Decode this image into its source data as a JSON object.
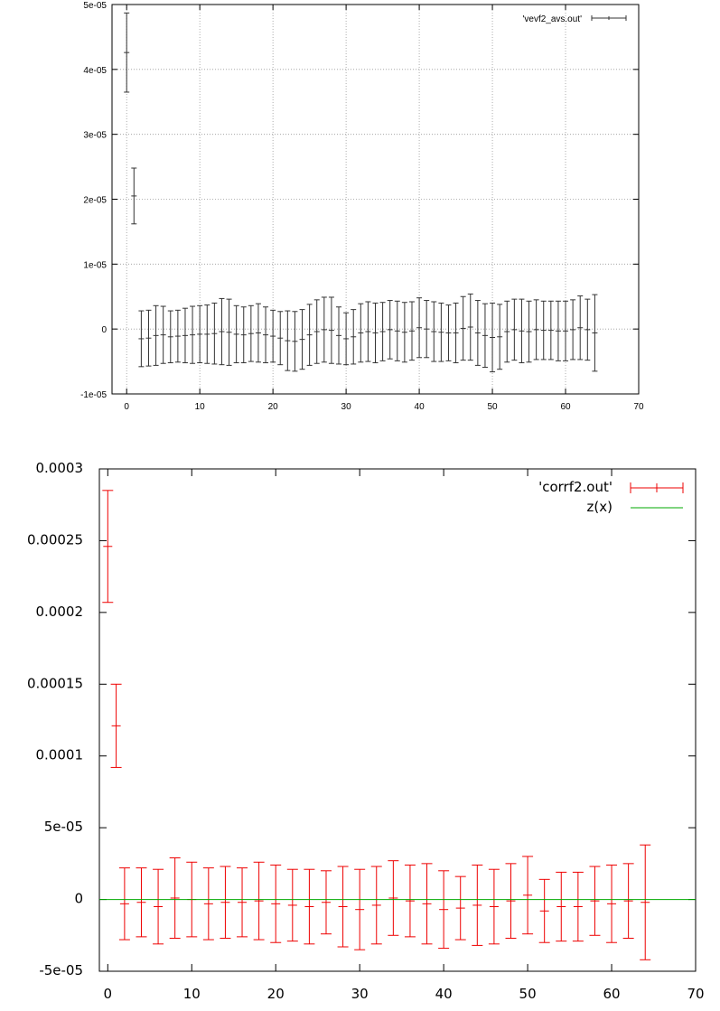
{
  "chart_data": [
    {
      "type": "scatter",
      "style": "errorbars",
      "title": "",
      "xlabel": "",
      "ylabel": "",
      "xlim": [
        -2,
        70
      ],
      "ylim": [
        -1e-05,
        5e-05
      ],
      "grid": true,
      "legend_position": "top-right",
      "x_ticks": [
        "0",
        "10",
        "20",
        "30",
        "40",
        "50",
        "60",
        "70"
      ],
      "y_ticks": [
        "-1e-05",
        "0",
        "1e-05",
        "2e-05",
        "3e-05",
        "4e-05",
        "5e-05"
      ],
      "series": [
        {
          "name": "'vevf2_avs.out'",
          "color": "#333333",
          "x": [
            0,
            1,
            2,
            3,
            4,
            5,
            6,
            7,
            8,
            9,
            10,
            11,
            12,
            13,
            14,
            15,
            16,
            17,
            18,
            19,
            20,
            21,
            22,
            23,
            24,
            25,
            26,
            27,
            28,
            29,
            30,
            31,
            32,
            33,
            34,
            35,
            36,
            37,
            38,
            39,
            40,
            41,
            42,
            43,
            44,
            45,
            46,
            47,
            48,
            49,
            50,
            51,
            52,
            53,
            54,
            55,
            56,
            57,
            58,
            59,
            60,
            61,
            62,
            63,
            64
          ],
          "y": [
            4.26e-05,
            2.05e-05,
            -1.5e-06,
            -1.4e-06,
            -1e-06,
            -9e-07,
            -1.2e-06,
            -1.1e-06,
            -1e-06,
            -9e-07,
            -8e-07,
            -8e-07,
            -7e-07,
            -4e-07,
            -5e-07,
            -8e-07,
            -9e-07,
            -7e-07,
            -6e-07,
            -9e-07,
            -1.1e-06,
            -1.4e-06,
            -1.8e-06,
            -1.9e-06,
            -1.6e-06,
            -9e-07,
            -4e-07,
            -1e-07,
            -2e-07,
            -1e-06,
            -1.5e-06,
            -1.2e-06,
            -6e-07,
            -4e-07,
            -6e-07,
            -4e-07,
            -1e-07,
            -3e-07,
            -5e-07,
            -3e-07,
            2e-07,
            0,
            -4e-07,
            -5e-07,
            -6e-07,
            -6e-07,
            1e-07,
            3e-07,
            -6e-07,
            -1e-06,
            -1.3e-06,
            -1.2e-06,
            -4e-07,
            -1e-07,
            -3e-07,
            -4e-07,
            -1e-07,
            -2e-07,
            -2e-07,
            -3e-07,
            -3e-07,
            -1e-07,
            2e-07,
            -1e-07,
            -6e-07
          ],
          "err": [
            6.1e-06,
            4.3e-06,
            4.3e-06,
            4.3e-06,
            4.6e-06,
            4.4e-06,
            4e-06,
            4e-06,
            4.2e-06,
            4.4e-06,
            4.4e-06,
            4.5e-06,
            4.7e-06,
            5.1e-06,
            5.1e-06,
            4.4e-06,
            4.3e-06,
            4.3e-06,
            4.5e-06,
            4.3e-06,
            4e-06,
            4.1e-06,
            4.6e-06,
            4.6e-06,
            4.6e-06,
            4.7e-06,
            4.9e-06,
            5e-06,
            5.1e-06,
            4.4e-06,
            4e-06,
            4.2e-06,
            4.5e-06,
            4.6e-06,
            4.6e-06,
            4.5e-06,
            4.5e-06,
            4.6e-06,
            4.6e-06,
            4.5e-06,
            4.6e-06,
            4.4e-06,
            4.6e-06,
            4.5e-06,
            4.3e-06,
            4.6e-06,
            4.9e-06,
            5.1e-06,
            5e-06,
            4.9e-06,
            5.3e-06,
            5e-06,
            4.7e-06,
            4.7e-06,
            4.9e-06,
            4.7e-06,
            4.6e-06,
            4.5e-06,
            4.5e-06,
            4.6e-06,
            4.6e-06,
            4.6e-06,
            4.9e-06,
            4.7e-06,
            5.9e-06
          ]
        }
      ]
    },
    {
      "type": "scatter",
      "style": "errorbars",
      "title": "",
      "xlabel": "",
      "ylabel": "",
      "xlim": [
        -1,
        70
      ],
      "ylim": [
        -5e-05,
        0.0003
      ],
      "grid": false,
      "legend_position": "top-right",
      "x_ticks": [
        "0",
        "10",
        "20",
        "30",
        "40",
        "50",
        "60",
        "70"
      ],
      "y_ticks": [
        "-5e-05",
        "0",
        "5e-05",
        "0.0001",
        "0.00015",
        "0.0002",
        "0.00025",
        "0.0003"
      ],
      "series": [
        {
          "name": "'corrf2.out'",
          "color": "#ee0000",
          "x": [
            0,
            1,
            2,
            4,
            6,
            8,
            10,
            12,
            14,
            16,
            18,
            20,
            22,
            24,
            26,
            28,
            30,
            32,
            34,
            36,
            38,
            40,
            42,
            44,
            46,
            48,
            50,
            52,
            54,
            56,
            58,
            60,
            62,
            64
          ],
          "y": [
            0.000246,
            0.000121,
            -3e-06,
            -2e-06,
            -5e-06,
            1e-06,
            0,
            -3e-06,
            -2e-06,
            -2e-06,
            -1e-06,
            -3e-06,
            -4e-06,
            -5e-06,
            -2e-06,
            -5e-06,
            -7e-06,
            -4e-06,
            1e-06,
            -1e-06,
            -3e-06,
            -7e-06,
            -6e-06,
            -4e-06,
            -5e-06,
            -1e-06,
            3e-06,
            -8e-06,
            -5e-06,
            -5e-06,
            -1e-06,
            -3e-06,
            -1e-06,
            -2e-06
          ],
          "err": [
            3.9e-05,
            2.9e-05,
            2.5e-05,
            2.4e-05,
            2.6e-05,
            2.8e-05,
            2.6e-05,
            2.5e-05,
            2.5e-05,
            2.4e-05,
            2.7e-05,
            2.7e-05,
            2.5e-05,
            2.6e-05,
            2.2e-05,
            2.8e-05,
            2.8e-05,
            2.7e-05,
            2.6e-05,
            2.5e-05,
            2.8e-05,
            2.7e-05,
            2.2e-05,
            2.8e-05,
            2.6e-05,
            2.6e-05,
            2.7e-05,
            2.2e-05,
            2.4e-05,
            2.4e-05,
            2.4e-05,
            2.7e-05,
            2.6e-05,
            4e-05
          ]
        },
        {
          "name": "z(x)",
          "color": "#00aa00",
          "function": "constant",
          "value": 0
        }
      ]
    }
  ]
}
